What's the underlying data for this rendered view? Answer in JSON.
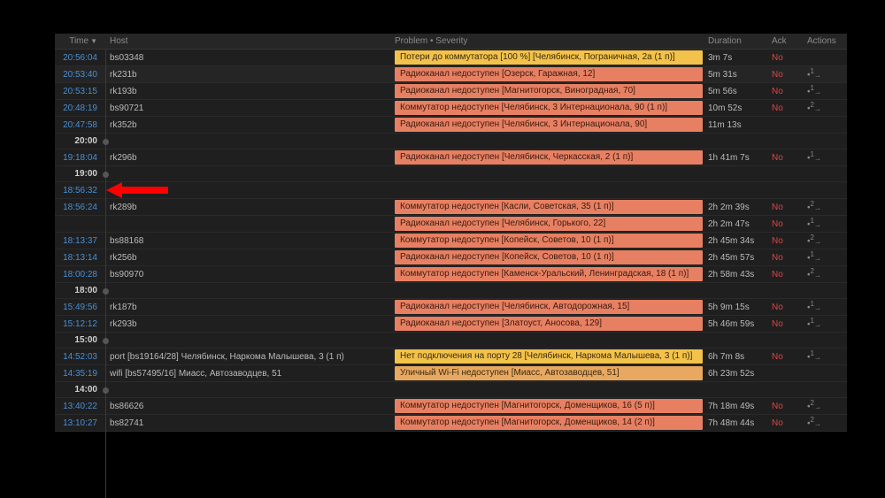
{
  "headers": {
    "time": "Time",
    "host": "Host",
    "problem": "Problem • Severity",
    "duration": "Duration",
    "ack": "Ack",
    "actions": "Actions"
  },
  "ack_no": "No",
  "colors": {
    "time_link": "#4a8fd4",
    "ack_no": "#d44444",
    "sev_high_bg": "#e78062",
    "sev_warn_bg": "#e8a860",
    "sev_avg_bg": "#f2c24a",
    "arrow": "#ff0000"
  },
  "rows": [
    {
      "type": "event",
      "time": "20:56:04",
      "host": "bs03348",
      "problem": "Потери до коммутатора [100 %] [Челябинск, Пограничная, 2а (1 п)]",
      "severity": "avg",
      "duration": "3m 7s",
      "ack": "No",
      "action_n": ""
    },
    {
      "type": "event",
      "time": "20:53:40",
      "host": "rk231b",
      "problem": "Радиоканал недоступен [Озерск, Гаражная, 12]",
      "severity": "high",
      "duration": "5m 31s",
      "ack": "No",
      "action_n": "1",
      "alt": true
    },
    {
      "type": "event",
      "time": "20:53:15",
      "host": "rk193b",
      "problem": "Радиоканал недоступен [Магнитогорск, Виноградная, 70]",
      "severity": "high",
      "duration": "5m 56s",
      "ack": "No",
      "action_n": "1"
    },
    {
      "type": "event",
      "time": "20:48:19",
      "host": "bs90721",
      "problem": "Коммутатор недоступен [Челябинск, 3 Интернационала, 90 (1 п)]",
      "severity": "high",
      "duration": "10m 52s",
      "ack": "No",
      "action_n": "2"
    },
    {
      "type": "event",
      "time": "20:47:58",
      "host": "rk352b",
      "problem": "Радиоканал недоступен [Челябинск, 3 Интернационала, 90]",
      "severity": "high",
      "duration": "11m 13s",
      "ack": "",
      "action_n": ""
    },
    {
      "type": "hour",
      "time": "20:00"
    },
    {
      "type": "event",
      "time": "19:18:04",
      "host": "rk296b",
      "problem": "Радиоканал недоступен [Челябинск, Черкасская, 2 (1 п)]",
      "severity": "high",
      "duration": "1h 41m 7s",
      "ack": "No",
      "action_n": "1"
    },
    {
      "type": "hour",
      "time": "19:00"
    },
    {
      "type": "event",
      "time": "18:56:32",
      "host": "",
      "problem": "",
      "severity": "",
      "duration": "",
      "ack": "",
      "action_n": "",
      "arrow": true
    },
    {
      "type": "event",
      "time": "18:56:24",
      "host": "rk289b",
      "problem": "Коммутатор недоступен [Касли, Советская, 35 (1 п)]",
      "severity": "high",
      "duration": "2h 2m 39s",
      "ack": "No",
      "action_n": "2",
      "shift": -1
    },
    {
      "type": "event",
      "time": "",
      "host": "",
      "problem": "Радиоканал недоступен [Челябинск, Горького, 22]",
      "severity": "high",
      "duration": "2h 2m 47s",
      "ack": "No",
      "action_n": "1",
      "prev_time": "18:56:24",
      "prev_host": "rk289b"
    },
    {
      "type": "event",
      "time": "18:13:37",
      "host": "bs88168",
      "problem": "Коммутатор недоступен [Копейск, Советов, 10 (1 п)]",
      "severity": "high",
      "duration": "2h 45m 34s",
      "ack": "No",
      "action_n": "2"
    },
    {
      "type": "event",
      "time": "18:13:14",
      "host": "rk256b",
      "problem": "Радиоканал недоступен [Копейск, Советов, 10 (1 п)]",
      "severity": "high",
      "duration": "2h 45m 57s",
      "ack": "No",
      "action_n": "1"
    },
    {
      "type": "event",
      "time": "18:00:28",
      "host": "bs90970",
      "problem": "Коммутатор недоступен [Каменск-Уральский, Ленинградская, 18 (1 п)]",
      "severity": "high",
      "duration": "2h 58m 43s",
      "ack": "No",
      "action_n": "2"
    },
    {
      "type": "hour",
      "time": "18:00"
    },
    {
      "type": "event",
      "time": "15:49:56",
      "host": "rk187b",
      "problem": "Радиоканал недоступен [Челябинск, Автодорожная, 15]",
      "severity": "high",
      "duration": "5h 9m 15s",
      "ack": "No",
      "action_n": "1"
    },
    {
      "type": "event",
      "time": "15:12:12",
      "host": "rk293b",
      "problem": "Радиоканал недоступен [Златоуст, Аносова, 129]",
      "severity": "high",
      "duration": "5h 46m 59s",
      "ack": "No",
      "action_n": "1"
    },
    {
      "type": "hour",
      "time": "15:00"
    },
    {
      "type": "event",
      "time": "14:52:03",
      "host": "port [bs19164/28] Челябинск, Наркома Малышева, 3 (1 п)",
      "problem": "Нет подключения на порту 28 [Челябинск, Наркома Малышева, 3 (1 п)]",
      "severity": "avg",
      "duration": "6h 7m 8s",
      "ack": "No",
      "action_n": "1"
    },
    {
      "type": "event",
      "time": "14:35:19",
      "host": "wifi [bs57495/16] Миасс, Автозаводцев, 51",
      "problem": "Уличный Wi-Fi недоступен [Миасс, Автозаводцев, 51]",
      "severity": "warn",
      "duration": "6h 23m 52s",
      "ack": "",
      "action_n": ""
    },
    {
      "type": "hour",
      "time": "14:00"
    },
    {
      "type": "event",
      "time": "13:40:22",
      "host": "bs86626",
      "problem": "Коммутатор недоступен [Магнитогорск, Доменщиков, 16 (5 п)]",
      "severity": "high",
      "duration": "7h 18m 49s",
      "ack": "No",
      "action_n": "2"
    },
    {
      "type": "event",
      "time": "13:10:27",
      "host": "bs82741",
      "problem": "Коммутатор недоступен [Магнитогорск, Доменщиков, 14 (2 п)]",
      "severity": "high",
      "duration": "7h 48m 44s",
      "ack": "No",
      "action_n": "2"
    }
  ]
}
